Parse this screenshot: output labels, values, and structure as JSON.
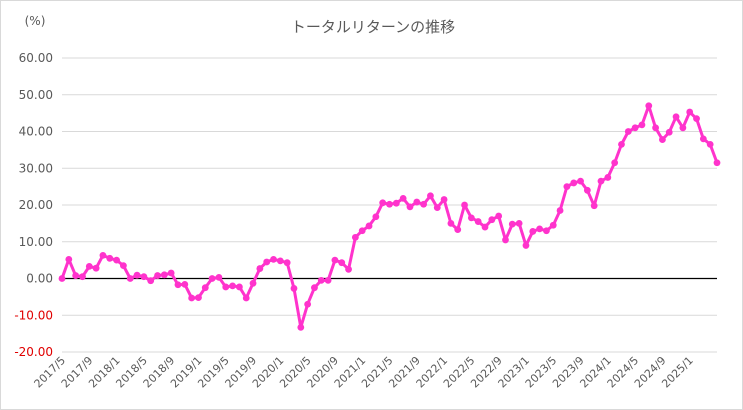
{
  "chart_data": {
    "type": "line",
    "title": "トータルリターンの推移",
    "unit_label": "(%)",
    "xlabel": "",
    "ylabel": "",
    "ylim": [
      -20,
      60
    ],
    "yticks": [
      "-20.00",
      "-10.00",
      "0.00",
      "10.00",
      "20.00",
      "30.00",
      "40.00",
      "50.00",
      "60.00"
    ],
    "xtick_labels": [
      "2017/5",
      "2017/9",
      "2018/1",
      "2018/5",
      "2018/9",
      "2019/1",
      "2019/5",
      "2019/9",
      "2020/1",
      "2020/5",
      "2020/9",
      "2021/1",
      "2021/5",
      "2021/9",
      "2022/1",
      "2022/5",
      "2022/9",
      "2023/1",
      "2023/5",
      "2023/9",
      "2024/1",
      "2024/5",
      "2024/9",
      "2025/1"
    ],
    "grid": "horizontal",
    "line_color": "#ff33cc",
    "zero_line_color": "#000000",
    "negative_tick_color": "#e00000",
    "series": [
      {
        "values": [
          0.0,
          5.2,
          0.8,
          0.5,
          3.3,
          2.8,
          6.3,
          5.5,
          5.0,
          3.5,
          0.0,
          0.9,
          0.5,
          -0.6,
          0.8,
          1.0,
          1.5,
          -1.7,
          -1.6,
          -5.3,
          -5.2,
          -2.5,
          0.0,
          0.3,
          -2.3,
          -2.0,
          -2.3,
          -5.3,
          -1.3,
          2.7,
          4.5,
          5.2,
          4.8,
          4.3,
          -2.7,
          -13.3,
          -7.0,
          -2.5,
          -0.5,
          -0.5,
          5.0,
          4.3,
          2.5,
          11.2,
          13.0,
          14.3,
          16.8,
          20.6,
          20.2,
          20.5,
          21.8,
          19.5,
          20.8,
          20.2,
          22.5,
          19.3,
          21.5,
          15.0,
          13.3,
          20.0,
          16.5,
          15.5,
          14.0,
          16.0,
          17.0,
          10.5,
          14.8,
          15.0,
          9.0,
          12.8,
          13.5,
          13.0,
          14.5,
          18.5,
          25.0,
          26.0,
          26.5,
          24.0,
          19.8,
          26.5,
          27.5,
          31.5,
          36.5,
          40.0,
          41.0,
          41.8,
          47.0,
          41.0,
          37.8,
          39.8,
          44.0,
          41.0,
          45.3,
          43.5,
          38.0,
          36.5,
          31.5
        ]
      }
    ]
  }
}
